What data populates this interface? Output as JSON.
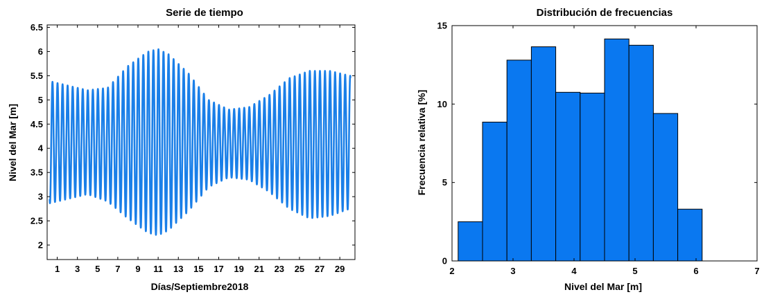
{
  "chart_data": [
    {
      "type": "line",
      "title": "Serie de tiempo",
      "xlabel": "Días/Septiembre2018",
      "ylabel": "Nivel del Mar [m]",
      "xlim": [
        0,
        30.5
      ],
      "ylim": [
        1.7,
        6.55
      ],
      "x_ticks": [
        1,
        3,
        5,
        7,
        9,
        11,
        13,
        15,
        17,
        19,
        21,
        23,
        25,
        27,
        29
      ],
      "y_ticks": [
        2,
        2.5,
        3,
        3.5,
        4,
        4.5,
        5,
        5.5,
        6,
        6.5
      ],
      "y_tick_labels": [
        "2",
        "2.5",
        "3",
        "3.5",
        "4",
        "4.5",
        "5",
        "5.5",
        "6",
        "6.5"
      ],
      "grid": false,
      "color": "#1a7fe8",
      "series": [
        {
          "envelope": {
            "day": [
              0,
              2,
              4,
              6,
              8,
              10,
              11,
              12,
              14,
              16,
              18,
              20,
              22,
              24,
              26,
              28,
              30
            ],
            "high": [
              5.4,
              5.3,
              5.2,
              5.25,
              5.7,
              6.0,
              6.05,
              5.95,
              5.55,
              5.0,
              4.8,
              4.85,
              5.1,
              5.45,
              5.6,
              5.6,
              5.5
            ],
            "low": [
              2.85,
              2.95,
              3.05,
              2.9,
              2.55,
              2.25,
              2.2,
              2.3,
              2.7,
              3.2,
              3.4,
              3.35,
              3.1,
              2.75,
              2.55,
              2.6,
              2.75
            ]
          },
          "cycles_per_day": 2
        }
      ]
    },
    {
      "type": "bar",
      "title": "Distribución de frecuencias",
      "xlabel": "Nivel del Mar [m]",
      "ylabel": "Frecuencia relativa [%]",
      "xlim": [
        2,
        7
      ],
      "ylim": [
        0,
        15
      ],
      "x_ticks": [
        2,
        3,
        4,
        5,
        6,
        7
      ],
      "y_ticks": [
        0,
        5,
        10,
        15
      ],
      "grid": false,
      "color": "#0a78f0",
      "bins": [
        {
          "x0": 2.1,
          "x1": 2.5,
          "value": 2.5
        },
        {
          "x0": 2.5,
          "x1": 2.9,
          "value": 8.85
        },
        {
          "x0": 2.9,
          "x1": 3.3,
          "value": 12.8
        },
        {
          "x0": 3.3,
          "x1": 3.7,
          "value": 13.65
        },
        {
          "x0": 3.7,
          "x1": 4.1,
          "value": 10.75
        },
        {
          "x0": 4.1,
          "x1": 4.5,
          "value": 10.7
        },
        {
          "x0": 4.5,
          "x1": 4.9,
          "value": 14.15
        },
        {
          "x0": 4.9,
          "x1": 5.3,
          "value": 13.75
        },
        {
          "x0": 5.3,
          "x1": 5.7,
          "value": 9.4
        },
        {
          "x0": 5.7,
          "x1": 6.1,
          "value": 3.3
        }
      ]
    }
  ]
}
